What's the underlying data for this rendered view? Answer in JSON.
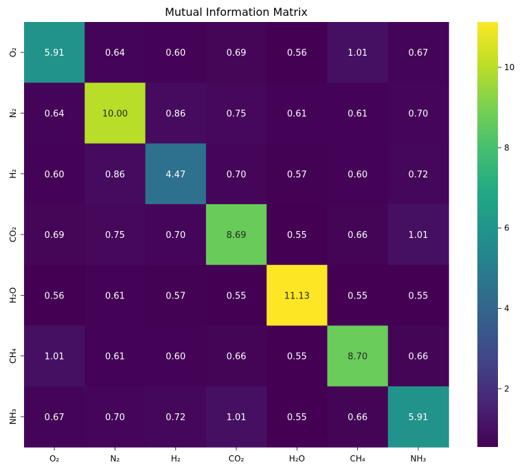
{
  "chart_data": {
    "type": "heatmap",
    "title": "Mutual Information Matrix",
    "xlabel": "",
    "ylabel": "",
    "x_categories": [
      "O₂",
      "N₂",
      "H₂",
      "CO₂",
      "H₂O",
      "CH₄",
      "NH₃"
    ],
    "y_categories": [
      "O₂",
      "N₂",
      "H₂",
      "CO₂",
      "H₂O",
      "CH₄",
      "NH₃"
    ],
    "values": [
      [
        5.91,
        0.64,
        0.6,
        0.69,
        0.56,
        1.01,
        0.67
      ],
      [
        0.64,
        10.0,
        0.86,
        0.75,
        0.61,
        0.61,
        0.7
      ],
      [
        0.6,
        0.86,
        4.47,
        0.7,
        0.57,
        0.6,
        0.72
      ],
      [
        0.69,
        0.75,
        0.7,
        8.69,
        0.55,
        0.66,
        1.01
      ],
      [
        0.56,
        0.61,
        0.57,
        0.55,
        11.13,
        0.55,
        0.55
      ],
      [
        1.01,
        0.61,
        0.6,
        0.66,
        0.55,
        8.7,
        0.66
      ],
      [
        0.67,
        0.7,
        0.72,
        1.01,
        0.55,
        0.66,
        5.91
      ]
    ],
    "value_format": "2 decimals",
    "colormap": "viridis",
    "colorbar": {
      "vmin": 0.55,
      "vmax": 11.13,
      "ticks": [
        2,
        4,
        6,
        8,
        10
      ]
    },
    "annotation_colors": {
      "dark_text": "#262626",
      "light_text": "#ffffff"
    }
  }
}
